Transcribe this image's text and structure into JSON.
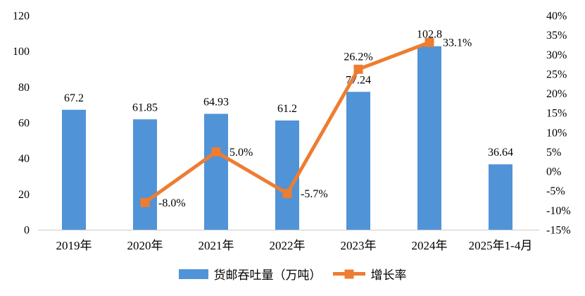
{
  "chart_data": {
    "type": "bar",
    "subtype": "bar-line-combo",
    "title": "",
    "categories": [
      "2019年",
      "2020年",
      "2021年",
      "2022年",
      "2023年",
      "2024年",
      "2025年1-4月"
    ],
    "series": [
      {
        "name": "货邮吞吐量（万吨）",
        "type": "bar",
        "axis": "left",
        "values": [
          67.2,
          61.85,
          64.93,
          61.2,
          77.24,
          102.8,
          36.64
        ],
        "labels": [
          "67.2",
          "61.85",
          "64.93",
          "61.2",
          "77.24",
          "102.8",
          "36.64"
        ]
      },
      {
        "name": "增长率",
        "type": "line",
        "axis": "right",
        "x_indices": [
          1,
          2,
          3,
          4,
          5
        ],
        "values": [
          -8.0,
          5.0,
          -5.7,
          26.2,
          33.1
        ],
        "labels": [
          "-8.0%",
          "5.0%",
          "-5.7%",
          "26.2%",
          "33.1%"
        ],
        "label_placement": [
          "right",
          "right",
          "right",
          "above",
          "right"
        ]
      }
    ],
    "left_axis": {
      "min": 0,
      "max": 120,
      "step": 20,
      "tick_labels": [
        "0",
        "20",
        "40",
        "60",
        "80",
        "100",
        "120"
      ]
    },
    "right_axis": {
      "min": -15,
      "max": 40,
      "step": 5,
      "tick_labels": [
        "-15%",
        "-10%",
        "-5%",
        "0%",
        "5%",
        "10%",
        "15%",
        "20%",
        "25%",
        "30%",
        "35%",
        "40%"
      ]
    },
    "grid": false,
    "legend_position": "bottom",
    "legend": [
      {
        "label": "货邮吞吐量（万吨）",
        "swatch": "bar"
      },
      {
        "label": "增长率",
        "swatch": "line-with-square-marker"
      }
    ]
  },
  "colors": {
    "bar": "#5193D7",
    "line": "#ED7D31",
    "axis_line": "#D9D9D9",
    "text": "#000000",
    "background": "#FFFFFF"
  }
}
